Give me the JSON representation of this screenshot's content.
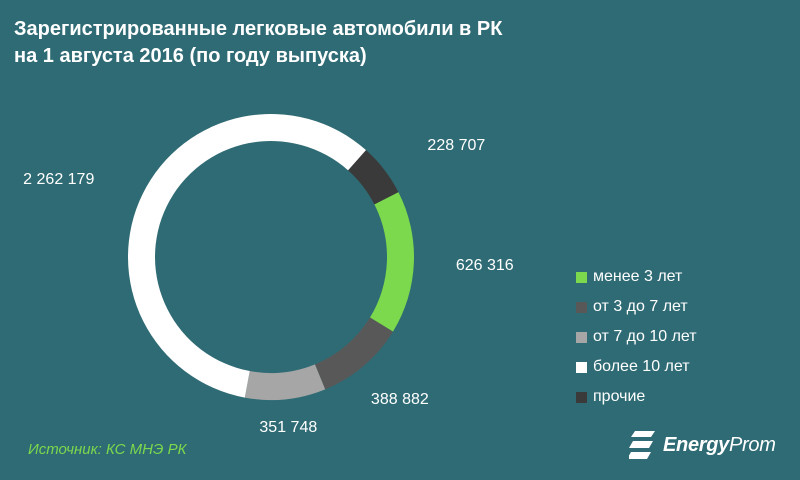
{
  "title": {
    "line1": "Зарегистрированные легковые автомобили в РК",
    "line2": "на 1 августа 2016 (по году выпуска)"
  },
  "chart_data": {
    "type": "pie",
    "variant": "donut",
    "title": "Зарегистрированные легковые автомобили в РК на 1 августа 2016 (по году выпуска)",
    "categories": [
      "менее 3 лет",
      "от 3 до 7 лет",
      "от 7 до 10 лет",
      "более 10 лет",
      "прочие"
    ],
    "values": [
      626316,
      388882,
      351748,
      2262179,
      228707
    ],
    "value_labels": [
      "626 316",
      "388 882",
      "351 748",
      "2 262 179",
      "228 707"
    ],
    "colors": [
      "#7cd84c",
      "#585858",
      "#a6a6a6",
      "#ffffff",
      "#3a3a3a"
    ],
    "legend_position": "right"
  },
  "source": "Источник: КС МНЭ РК",
  "logo": {
    "brand_bold": "Energy",
    "brand_light": "Prom"
  }
}
